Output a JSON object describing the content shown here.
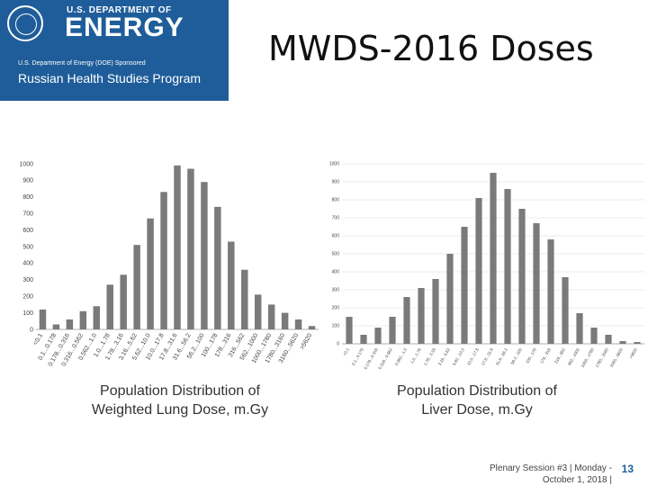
{
  "header": {
    "dept_line": "U.S. DEPARTMENT OF",
    "energy_word": "ENERGY",
    "sponsor_line": "U.S. Department of Energy (DOE) Sponsored",
    "program_line": "Russian Health Studies Program",
    "colors": {
      "banner": "#1f5d9a",
      "text": "#ffffff"
    }
  },
  "title": "MWDS-2016 Doses",
  "chart_data": [
    {
      "type": "bar",
      "caption": [
        "Population Distribution of",
        "Weighted Lung Dose, m.Gy"
      ],
      "categories": [
        "<0.1",
        "0.1...0.178",
        "0.178...0.316",
        "0.316...0.562",
        "0.562...1.0",
        "1.0...1.78",
        "1.78...3.16",
        "3.16...5.62",
        "5.62...10.0",
        "10.0...17.8",
        "17.8...31.6",
        "31.6...56.2",
        "56.2...100",
        "100...178",
        "178...316",
        "316...562",
        "562...1000",
        "1000...1780",
        "1780...3160",
        "3160...5620",
        ">5620"
      ],
      "values": [
        120,
        30,
        60,
        110,
        140,
        270,
        330,
        510,
        670,
        830,
        990,
        970,
        890,
        740,
        530,
        360,
        210,
        150,
        100,
        60,
        20
      ],
      "yticks": [
        0,
        100,
        200,
        300,
        400,
        500,
        600,
        700,
        800,
        900,
        1000
      ],
      "ylim": [
        0,
        1000
      ],
      "grid": false,
      "bar_color": "#7a7a7a"
    },
    {
      "type": "bar",
      "caption": [
        "Population Distribution of",
        "Liver Dose, m.Gy"
      ],
      "categories": [
        "<0.1",
        "0.1...0.178",
        "0.178...0.316",
        "0.316...0.562",
        "0.562...1.0",
        "1.0...1.78",
        "1.78...3.16",
        "3.16...5.62",
        "5.62...10.0",
        "10.0...17.8",
        "17.8...31.6",
        "31.6...56.2",
        "56.2...100",
        "100...178",
        "178...316",
        "316...562",
        "562...1000",
        "1000...1780",
        "1780...3160",
        "3160...5620",
        ">5620"
      ],
      "values": [
        150,
        50,
        90,
        150,
        260,
        310,
        360,
        500,
        650,
        810,
        950,
        860,
        750,
        670,
        580,
        370,
        170,
        90,
        50,
        15,
        10
      ],
      "yticks": [
        0,
        100,
        200,
        300,
        400,
        500,
        600,
        700,
        800,
        900,
        1000
      ],
      "ylim": [
        0,
        1000
      ],
      "grid": true,
      "bar_color": "#7a7a7a"
    }
  ],
  "footer": {
    "line1": "Plenary Session #3 | Monday -",
    "line2": "October 1, 2018 |",
    "page": "13"
  }
}
